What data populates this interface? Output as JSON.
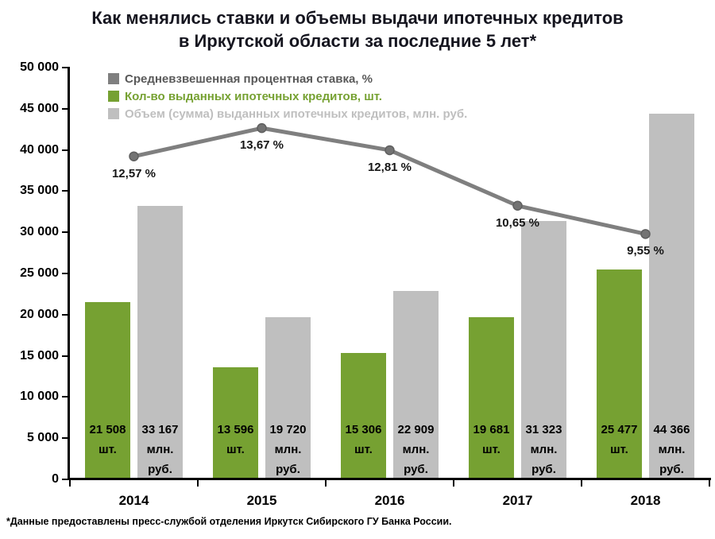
{
  "page": {
    "title_line1": "Как менялись ставки и объемы выдачи ипотечных кредитов",
    "title_line2": "в Иркутской области за последние 5 лет*",
    "footnote": "*Данные предоставлены пресс-службой отделения Иркутск Сибирского ГУ Банка России."
  },
  "chart_data": {
    "type": "bar",
    "subtype": "grouped-bars-with-line-overlay",
    "title": "Как менялись ставки и объемы выдачи ипотечных кредитов в Иркутской области за последние 5 лет*",
    "categories": [
      "2014",
      "2015",
      "2016",
      "2017",
      "2018"
    ],
    "series": [
      {
        "name": "Средневзвешенная процентная ставка, %",
        "type": "line",
        "color": "#7F7F7F",
        "marker_color": "#737373",
        "legend_text_color": "#595959",
        "values": [
          12.57,
          13.67,
          12.81,
          10.65,
          9.55
        ],
        "point_labels": [
          "12,57 %",
          "13,67 %",
          "12,81 %",
          "10,65 %",
          "9,55 %"
        ]
      },
      {
        "name": "Кол-во выданных ипотечных кредитов, шт.",
        "type": "bar",
        "color": "#76A132",
        "legend_text_color": "#76A132",
        "values": [
          21508,
          13596,
          15306,
          19681,
          25477
        ],
        "value_labels": [
          "21 508",
          "13 596",
          "15 306",
          "19 681",
          "25 477"
        ],
        "unit_lines": [
          "шт."
        ]
      },
      {
        "name": "Объем (сумма) выданных ипотечных кредитов, млн. руб.",
        "type": "bar",
        "color": "#BFBFBF",
        "legend_text_color": "#BFBFBF",
        "values": [
          33167,
          19720,
          22909,
          31323,
          44366
        ],
        "value_labels": [
          "33 167",
          "19 720",
          "22 909",
          "31 323",
          "44 366"
        ],
        "unit_lines": [
          "млн.",
          "руб."
        ]
      }
    ],
    "ylim": [
      0,
      50000
    ],
    "y_tick_step": 5000,
    "y_tick_labels": [
      "0",
      "5 000",
      "10 000",
      "15 000",
      "20 000",
      "25 000",
      "30 000",
      "35 000",
      "40 000",
      "45 000",
      "50 000"
    ],
    "grid": false,
    "legend_position": "top-left-inside",
    "line_percent_to_axis_scale": 3120
  }
}
